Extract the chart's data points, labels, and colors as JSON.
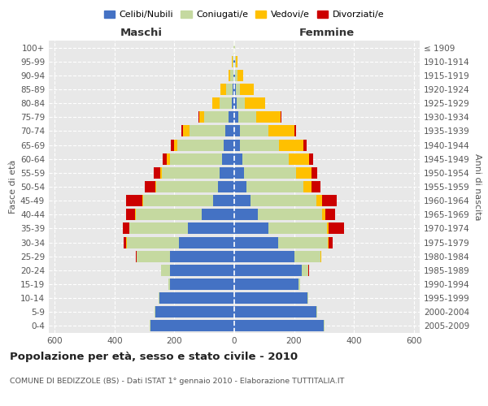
{
  "age_groups": [
    "0-4",
    "5-9",
    "10-14",
    "15-19",
    "20-24",
    "25-29",
    "30-34",
    "35-39",
    "40-44",
    "45-49",
    "50-54",
    "55-59",
    "60-64",
    "65-69",
    "70-74",
    "75-79",
    "80-84",
    "85-89",
    "90-94",
    "95-99",
    "100+"
  ],
  "birth_years": [
    "2005-2009",
    "2000-2004",
    "1995-1999",
    "1990-1994",
    "1985-1989",
    "1980-1984",
    "1975-1979",
    "1970-1974",
    "1965-1969",
    "1960-1964",
    "1955-1959",
    "1950-1954",
    "1945-1949",
    "1940-1944",
    "1935-1939",
    "1930-1934",
    "1925-1929",
    "1920-1924",
    "1915-1919",
    "1910-1914",
    "≤ 1909"
  ],
  "maschi": {
    "celibi": [
      280,
      265,
      250,
      215,
      215,
      215,
      185,
      155,
      110,
      70,
      55,
      48,
      40,
      35,
      30,
      20,
      8,
      5,
      3,
      2,
      1
    ],
    "coniugati": [
      2,
      2,
      2,
      5,
      30,
      110,
      175,
      195,
      220,
      235,
      205,
      195,
      175,
      155,
      120,
      80,
      40,
      22,
      10,
      4,
      1
    ],
    "vedovi": [
      0,
      0,
      0,
      0,
      0,
      2,
      2,
      2,
      2,
      2,
      3,
      5,
      10,
      12,
      20,
      18,
      25,
      18,
      6,
      3,
      1
    ],
    "divorziati": [
      0,
      0,
      0,
      0,
      0,
      2,
      8,
      20,
      30,
      55,
      35,
      22,
      14,
      10,
      8,
      2,
      0,
      0,
      0,
      0,
      0
    ]
  },
  "femmine": {
    "nubili": [
      300,
      275,
      245,
      215,
      225,
      200,
      148,
      115,
      78,
      55,
      42,
      32,
      28,
      20,
      18,
      14,
      8,
      5,
      3,
      2,
      1
    ],
    "coniugate": [
      2,
      2,
      2,
      5,
      22,
      88,
      165,
      195,
      215,
      220,
      188,
      175,
      155,
      130,
      95,
      60,
      28,
      15,
      8,
      3,
      1
    ],
    "vedove": [
      0,
      0,
      0,
      0,
      0,
      2,
      2,
      6,
      12,
      18,
      28,
      50,
      68,
      82,
      88,
      82,
      68,
      45,
      18,
      6,
      1
    ],
    "divorziate": [
      0,
      0,
      0,
      0,
      2,
      2,
      14,
      52,
      32,
      50,
      30,
      20,
      14,
      9,
      6,
      2,
      0,
      0,
      0,
      0,
      0
    ]
  },
  "colors": {
    "celibi": "#4472c4",
    "coniugati": "#c5d9a0",
    "vedovi": "#ffc000",
    "divorziati": "#cc0000"
  },
  "title": "Popolazione per età, sesso e stato civile - 2010",
  "subtitle": "COMUNE DI BEDIZZOLE (BS) - Dati ISTAT 1° gennaio 2010 - Elaborazione TUTTITALIA.IT",
  "maschi_label": "Maschi",
  "femmine_label": "Femmine",
  "ylabel_left": "Fasce di età",
  "ylabel_right": "Anni di nascita",
  "xlim": 620,
  "bg_color": "#ffffff",
  "plot_bg": "#e8e8e8",
  "grid_color": "#ffffff",
  "legend_labels": [
    "Celibi/Nubili",
    "Coniugati/e",
    "Vedovi/e",
    "Divorziati/e"
  ]
}
